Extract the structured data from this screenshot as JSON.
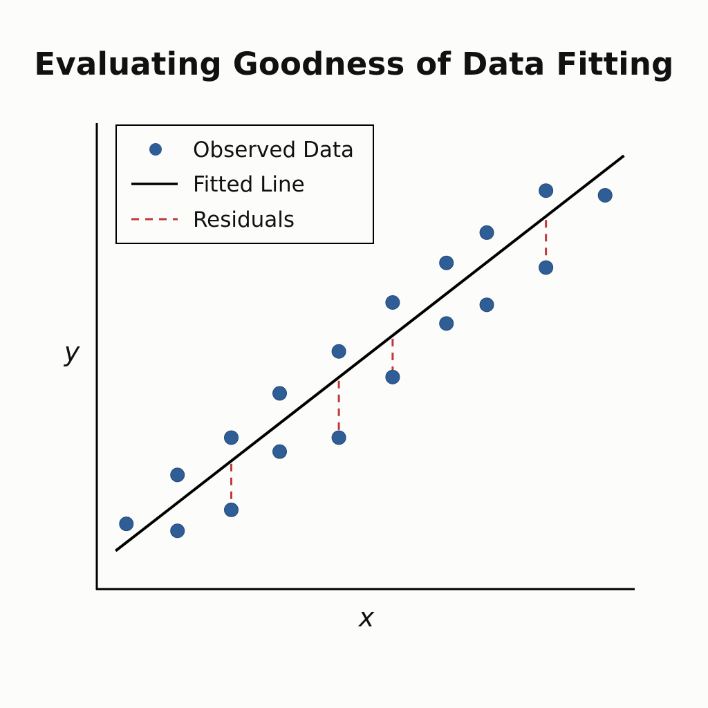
{
  "chart_data": {
    "type": "scatter",
    "title": "Evaluating Goodness of Data Fitting",
    "xlabel": "x",
    "ylabel": "y",
    "xlim": [
      0,
      10
    ],
    "ylim": [
      0,
      10
    ],
    "grid": false,
    "legend_position": "top-left",
    "legend": {
      "observed": "Observed Data",
      "fitted": "Fitted Line",
      "residuals": "Residuals"
    },
    "colors": {
      "observed": "#2f5d95",
      "fitted": "#000000",
      "residuals": "#c0393b"
    },
    "series": [
      {
        "name": "Observed Data",
        "points": [
          [
            0.55,
            1.4
          ],
          [
            1.5,
            2.45
          ],
          [
            1.5,
            1.25
          ],
          [
            2.5,
            3.25
          ],
          [
            2.5,
            1.7
          ],
          [
            3.4,
            4.2
          ],
          [
            3.4,
            2.95
          ],
          [
            4.5,
            5.1
          ],
          [
            4.5,
            3.25
          ],
          [
            5.5,
            6.15
          ],
          [
            5.5,
            4.55
          ],
          [
            6.5,
            7.0
          ],
          [
            6.5,
            5.7
          ],
          [
            7.25,
            7.65
          ],
          [
            7.25,
            6.1
          ],
          [
            8.35,
            8.55
          ],
          [
            8.35,
            6.9
          ],
          [
            9.45,
            8.45
          ]
        ]
      },
      {
        "name": "Fitted Line",
        "x": [
          0.35,
          9.8
        ],
        "y": [
          0.82,
          9.3
        ]
      },
      {
        "name": "Residuals",
        "segments": [
          [
            2.5,
            2.69,
            1.7
          ],
          [
            4.5,
            4.47,
            3.25
          ],
          [
            5.5,
            5.37,
            4.55
          ],
          [
            8.35,
            7.92,
            6.9
          ]
        ]
      }
    ]
  }
}
